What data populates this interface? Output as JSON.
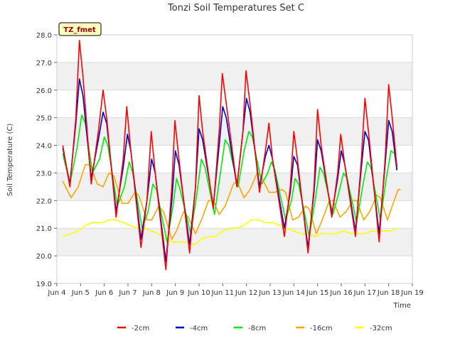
{
  "chart_data": {
    "type": "line",
    "title": "Tonzi Soil Temperatures Set C",
    "xlabel": "Time",
    "ylabel": "Soil Temperature (C)",
    "annotation": "TZ_fmet",
    "ylim": [
      19.0,
      28.0
    ],
    "xlim": [
      4,
      19
    ],
    "grid": "horizontal-bands",
    "legend_position": "bottom",
    "x_ticks": [
      {
        "v": 4,
        "label": "Jun 4"
      },
      {
        "v": 5,
        "label": "Jun 5"
      },
      {
        "v": 6,
        "label": "Jun 6"
      },
      {
        "v": 7,
        "label": "Jun 7"
      },
      {
        "v": 8,
        "label": "Jun 8"
      },
      {
        "v": 9,
        "label": "Jun 9"
      },
      {
        "v": 10,
        "label": "Jun 10"
      },
      {
        "v": 11,
        "label": "Jun 11"
      },
      {
        "v": 12,
        "label": "Jun 12"
      },
      {
        "v": 13,
        "label": "Jun 13"
      },
      {
        "v": 14,
        "label": "Jun 14"
      },
      {
        "v": 15,
        "label": "Jun 15"
      },
      {
        "v": 16,
        "label": "Jun 16"
      },
      {
        "v": 17,
        "label": "Jun 17"
      },
      {
        "v": 18,
        "label": "Jun 18"
      },
      {
        "v": 19,
        "label": "Jun 19"
      }
    ],
    "y_ticks": [
      {
        "v": 19,
        "label": "19.0"
      },
      {
        "v": 20,
        "label": "20.0"
      },
      {
        "v": 21,
        "label": "21.0"
      },
      {
        "v": 22,
        "label": "22.0"
      },
      {
        "v": 23,
        "label": "23.0"
      },
      {
        "v": 24,
        "label": "24.0"
      },
      {
        "v": 25,
        "label": "25.0"
      },
      {
        "v": 26,
        "label": "26.0"
      },
      {
        "v": 27,
        "label": "27.0"
      },
      {
        "v": 28,
        "label": "28.0"
      }
    ],
    "series": [
      {
        "name": "-2cm",
        "color": "#ff0000",
        "points": [
          [
            4.25,
            24.0
          ],
          [
            4.55,
            22.5
          ],
          [
            4.8,
            25.0
          ],
          [
            4.95,
            27.8
          ],
          [
            5.1,
            26.5
          ],
          [
            5.45,
            22.6
          ],
          [
            5.75,
            24.5
          ],
          [
            5.95,
            26.0
          ],
          [
            6.1,
            25.0
          ],
          [
            6.5,
            21.4
          ],
          [
            6.8,
            23.5
          ],
          [
            6.95,
            25.4
          ],
          [
            7.1,
            24.0
          ],
          [
            7.55,
            20.3
          ],
          [
            7.8,
            22.0
          ],
          [
            7.98,
            24.5
          ],
          [
            8.15,
            23.0
          ],
          [
            8.6,
            19.5
          ],
          [
            8.85,
            22.5
          ],
          [
            8.98,
            24.9
          ],
          [
            9.15,
            23.5
          ],
          [
            9.6,
            20.1
          ],
          [
            9.85,
            22.5
          ],
          [
            10.0,
            25.8
          ],
          [
            10.15,
            24.5
          ],
          [
            10.6,
            21.7
          ],
          [
            10.85,
            24.5
          ],
          [
            10.98,
            26.6
          ],
          [
            11.15,
            25.5
          ],
          [
            11.6,
            22.5
          ],
          [
            11.85,
            24.5
          ],
          [
            11.98,
            26.7
          ],
          [
            12.15,
            25.5
          ],
          [
            12.55,
            22.3
          ],
          [
            12.8,
            23.8
          ],
          [
            12.95,
            24.8
          ],
          [
            13.1,
            23.5
          ],
          [
            13.6,
            20.7
          ],
          [
            13.85,
            22.5
          ],
          [
            14.0,
            24.5
          ],
          [
            14.15,
            23.5
          ],
          [
            14.6,
            20.1
          ],
          [
            14.85,
            22.5
          ],
          [
            15.0,
            25.3
          ],
          [
            15.15,
            24.0
          ],
          [
            15.6,
            21.4
          ],
          [
            15.85,
            23.0
          ],
          [
            15.98,
            24.4
          ],
          [
            16.15,
            23.3
          ],
          [
            16.6,
            20.7
          ],
          [
            16.85,
            23.5
          ],
          [
            17.0,
            25.7
          ],
          [
            17.15,
            24.5
          ],
          [
            17.6,
            20.5
          ],
          [
            17.85,
            23.5
          ],
          [
            18.0,
            26.2
          ],
          [
            18.15,
            25.0
          ],
          [
            18.35,
            23.2
          ]
        ]
      },
      {
        "name": "-4cm",
        "color": "#0000cc",
        "points": [
          [
            4.25,
            23.9
          ],
          [
            4.55,
            22.6
          ],
          [
            4.8,
            24.8
          ],
          [
            4.95,
            26.4
          ],
          [
            5.1,
            25.8
          ],
          [
            5.45,
            22.8
          ],
          [
            5.75,
            24.2
          ],
          [
            5.95,
            25.2
          ],
          [
            6.1,
            24.8
          ],
          [
            6.5,
            21.6
          ],
          [
            6.8,
            23.2
          ],
          [
            6.98,
            24.4
          ],
          [
            7.12,
            23.8
          ],
          [
            7.55,
            20.6
          ],
          [
            7.8,
            22.0
          ],
          [
            8.0,
            23.5
          ],
          [
            8.15,
            23.0
          ],
          [
            8.6,
            19.8
          ],
          [
            8.85,
            22.0
          ],
          [
            9.0,
            23.8
          ],
          [
            9.15,
            23.3
          ],
          [
            9.6,
            20.4
          ],
          [
            9.85,
            22.5
          ],
          [
            10.0,
            24.6
          ],
          [
            10.15,
            24.2
          ],
          [
            10.6,
            21.8
          ],
          [
            10.85,
            24.0
          ],
          [
            11.0,
            25.4
          ],
          [
            11.15,
            25.0
          ],
          [
            11.6,
            22.5
          ],
          [
            11.85,
            24.5
          ],
          [
            12.0,
            25.7
          ],
          [
            12.15,
            25.2
          ],
          [
            12.55,
            22.5
          ],
          [
            12.8,
            23.6
          ],
          [
            12.95,
            24.0
          ],
          [
            13.1,
            23.5
          ],
          [
            13.6,
            21.0
          ],
          [
            13.85,
            22.3
          ],
          [
            14.0,
            23.6
          ],
          [
            14.15,
            23.3
          ],
          [
            14.6,
            20.3
          ],
          [
            14.85,
            22.3
          ],
          [
            15.0,
            24.2
          ],
          [
            15.15,
            23.8
          ],
          [
            15.6,
            21.5
          ],
          [
            15.85,
            22.8
          ],
          [
            16.0,
            23.8
          ],
          [
            16.15,
            23.3
          ],
          [
            16.6,
            20.9
          ],
          [
            16.85,
            23.2
          ],
          [
            17.0,
            24.5
          ],
          [
            17.15,
            24.2
          ],
          [
            17.6,
            20.8
          ],
          [
            17.85,
            23.3
          ],
          [
            18.0,
            24.9
          ],
          [
            18.15,
            24.5
          ],
          [
            18.35,
            23.1
          ]
        ]
      },
      {
        "name": "-8cm",
        "color": "#00ee00",
        "points": [
          [
            4.25,
            23.7
          ],
          [
            4.55,
            22.6
          ],
          [
            4.85,
            23.9
          ],
          [
            5.05,
            25.1
          ],
          [
            5.2,
            24.8
          ],
          [
            5.5,
            23.0
          ],
          [
            5.8,
            23.5
          ],
          [
            6.0,
            24.3
          ],
          [
            6.15,
            24.0
          ],
          [
            6.55,
            21.8
          ],
          [
            6.85,
            22.5
          ],
          [
            7.05,
            23.4
          ],
          [
            7.2,
            23.0
          ],
          [
            7.6,
            21.0
          ],
          [
            7.85,
            21.6
          ],
          [
            8.05,
            22.6
          ],
          [
            8.2,
            22.4
          ],
          [
            8.65,
            20.5
          ],
          [
            8.9,
            21.8
          ],
          [
            9.05,
            22.8
          ],
          [
            9.2,
            22.4
          ],
          [
            9.65,
            20.8
          ],
          [
            9.9,
            22.2
          ],
          [
            10.1,
            23.5
          ],
          [
            10.25,
            23.2
          ],
          [
            10.65,
            21.5
          ],
          [
            10.9,
            23.0
          ],
          [
            11.1,
            24.2
          ],
          [
            11.25,
            24.0
          ],
          [
            11.65,
            22.5
          ],
          [
            11.9,
            23.8
          ],
          [
            12.1,
            24.5
          ],
          [
            12.25,
            24.3
          ],
          [
            12.65,
            22.6
          ],
          [
            12.9,
            23.0
          ],
          [
            13.05,
            23.4
          ],
          [
            13.2,
            23.1
          ],
          [
            13.65,
            21.3
          ],
          [
            13.9,
            22.0
          ],
          [
            14.05,
            22.8
          ],
          [
            14.2,
            22.6
          ],
          [
            14.65,
            20.7
          ],
          [
            14.9,
            22.0
          ],
          [
            15.1,
            23.2
          ],
          [
            15.25,
            23.0
          ],
          [
            15.65,
            21.5
          ],
          [
            15.9,
            22.3
          ],
          [
            16.1,
            23.0
          ],
          [
            16.25,
            22.8
          ],
          [
            16.65,
            21.2
          ],
          [
            16.9,
            22.5
          ],
          [
            17.1,
            23.4
          ],
          [
            17.25,
            23.2
          ],
          [
            17.65,
            21.3
          ],
          [
            17.9,
            22.8
          ],
          [
            18.1,
            23.8
          ],
          [
            18.25,
            23.7
          ],
          [
            18.35,
            23.1
          ]
        ]
      },
      {
        "name": "-16cm",
        "color": "#ffa500",
        "points": [
          [
            4.25,
            22.7
          ],
          [
            4.6,
            22.1
          ],
          [
            4.9,
            22.5
          ],
          [
            5.2,
            23.3
          ],
          [
            5.4,
            23.3
          ],
          [
            5.7,
            22.6
          ],
          [
            5.95,
            22.5
          ],
          [
            6.2,
            23.0
          ],
          [
            6.4,
            22.9
          ],
          [
            6.75,
            21.9
          ],
          [
            7.0,
            21.9
          ],
          [
            7.3,
            22.3
          ],
          [
            7.45,
            22.2
          ],
          [
            7.8,
            21.3
          ],
          [
            8.0,
            21.3
          ],
          [
            8.3,
            21.8
          ],
          [
            8.5,
            21.6
          ],
          [
            8.85,
            20.6
          ],
          [
            9.05,
            20.9
          ],
          [
            9.35,
            21.6
          ],
          [
            9.55,
            21.4
          ],
          [
            9.85,
            20.8
          ],
          [
            10.1,
            21.3
          ],
          [
            10.4,
            22.0
          ],
          [
            10.6,
            22.0
          ],
          [
            10.85,
            21.5
          ],
          [
            11.1,
            21.8
          ],
          [
            11.45,
            22.6
          ],
          [
            11.6,
            22.7
          ],
          [
            11.9,
            22.1
          ],
          [
            12.15,
            22.4
          ],
          [
            12.45,
            23.0
          ],
          [
            12.6,
            22.9
          ],
          [
            12.95,
            22.3
          ],
          [
            13.2,
            22.3
          ],
          [
            13.5,
            22.4
          ],
          [
            13.65,
            22.3
          ],
          [
            13.95,
            21.3
          ],
          [
            14.2,
            21.4
          ],
          [
            14.5,
            21.8
          ],
          [
            14.65,
            21.7
          ],
          [
            14.95,
            20.8
          ],
          [
            15.2,
            21.3
          ],
          [
            15.5,
            22.0
          ],
          [
            15.65,
            22.0
          ],
          [
            15.95,
            21.4
          ],
          [
            16.2,
            21.6
          ],
          [
            16.5,
            22.0
          ],
          [
            16.65,
            22.0
          ],
          [
            16.95,
            21.3
          ],
          [
            17.2,
            21.6
          ],
          [
            17.5,
            22.2
          ],
          [
            17.65,
            22.1
          ],
          [
            17.95,
            21.3
          ],
          [
            18.15,
            21.8
          ],
          [
            18.4,
            22.4
          ],
          [
            18.5,
            22.4
          ]
        ]
      },
      {
        "name": "-32cm",
        "color": "#ffff00",
        "points": [
          [
            4.25,
            20.7
          ],
          [
            4.6,
            20.8
          ],
          [
            4.9,
            20.9
          ],
          [
            5.2,
            21.1
          ],
          [
            5.5,
            21.2
          ],
          [
            5.9,
            21.2
          ],
          [
            6.2,
            21.3
          ],
          [
            6.5,
            21.3
          ],
          [
            6.8,
            21.2
          ],
          [
            7.1,
            21.1
          ],
          [
            7.4,
            21.0
          ],
          [
            7.7,
            21.0
          ],
          [
            8.0,
            20.9
          ],
          [
            8.3,
            20.8
          ],
          [
            8.6,
            20.6
          ],
          [
            8.9,
            20.5
          ],
          [
            9.2,
            20.5
          ],
          [
            9.5,
            20.5
          ],
          [
            9.8,
            20.4
          ],
          [
            10.1,
            20.6
          ],
          [
            10.4,
            20.7
          ],
          [
            10.7,
            20.7
          ],
          [
            11.0,
            20.9
          ],
          [
            11.3,
            21.0
          ],
          [
            11.6,
            21.0
          ],
          [
            11.9,
            21.1
          ],
          [
            12.2,
            21.3
          ],
          [
            12.5,
            21.3
          ],
          [
            12.8,
            21.2
          ],
          [
            13.1,
            21.2
          ],
          [
            13.4,
            21.1
          ],
          [
            13.7,
            21.0
          ],
          [
            14.0,
            20.9
          ],
          [
            14.3,
            20.8
          ],
          [
            14.6,
            20.8
          ],
          [
            14.9,
            20.7
          ],
          [
            15.2,
            20.8
          ],
          [
            15.5,
            20.8
          ],
          [
            15.8,
            20.8
          ],
          [
            16.1,
            20.9
          ],
          [
            16.4,
            20.8
          ],
          [
            16.7,
            20.8
          ],
          [
            17.0,
            20.8
          ],
          [
            17.3,
            20.9
          ],
          [
            17.6,
            20.9
          ],
          [
            17.9,
            20.9
          ],
          [
            18.1,
            20.9
          ],
          [
            18.35,
            21.0
          ]
        ]
      }
    ]
  }
}
